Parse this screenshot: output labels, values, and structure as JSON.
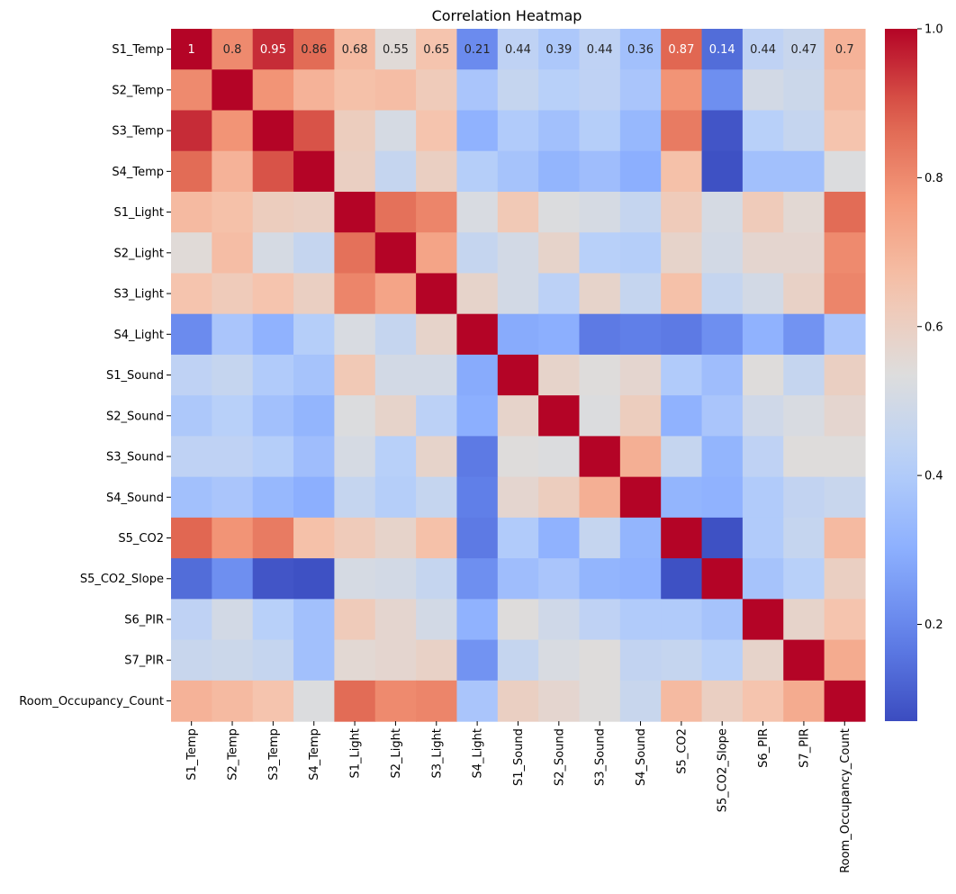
{
  "chart_data": {
    "type": "heatmap",
    "title": "Correlation Heatmap",
    "xlabel": "",
    "ylabel": "",
    "colormap": "coolwarm",
    "vmin": 0.07,
    "vmax": 1.0,
    "colorbar_ticks": [
      "0.2",
      "0.4",
      "0.6",
      "0.8",
      "1.0"
    ],
    "labels": [
      "S1_Temp",
      "S2_Temp",
      "S3_Temp",
      "S4_Temp",
      "S1_Light",
      "S2_Light",
      "S3_Light",
      "S4_Light",
      "S1_Sound",
      "S2_Sound",
      "S3_Sound",
      "S4_Sound",
      "S5_CO2",
      "S5_CO2_Slope",
      "S6_PIR",
      "S7_PIR",
      "Room_Occupancy_Count"
    ],
    "annotated_rows": 1,
    "annotations": [
      [
        "1",
        "0.8",
        "0.95",
        "0.86",
        "0.68",
        "0.55",
        "0.65",
        "0.21",
        "0.44",
        "0.39",
        "0.44",
        "0.36",
        "0.87",
        "0.14",
        "0.44",
        "0.47",
        "0.7"
      ]
    ],
    "values": [
      [
        1.0,
        0.8,
        0.95,
        0.86,
        0.68,
        0.55,
        0.65,
        0.21,
        0.44,
        0.39,
        0.44,
        0.36,
        0.87,
        0.14,
        0.44,
        0.47,
        0.7
      ],
      [
        0.8,
        1.0,
        0.78,
        0.7,
        0.66,
        0.67,
        0.62,
        0.38,
        0.46,
        0.42,
        0.44,
        0.38,
        0.78,
        0.22,
        0.5,
        0.48,
        0.68
      ],
      [
        0.95,
        0.78,
        1.0,
        0.9,
        0.61,
        0.51,
        0.65,
        0.31,
        0.4,
        0.36,
        0.41,
        0.33,
        0.83,
        0.09,
        0.42,
        0.46,
        0.65
      ],
      [
        0.86,
        0.7,
        0.9,
        1.0,
        0.6,
        0.46,
        0.6,
        0.41,
        0.37,
        0.32,
        0.35,
        0.3,
        0.66,
        0.08,
        0.36,
        0.36,
        0.53
      ],
      [
        0.68,
        0.66,
        0.61,
        0.6,
        1.0,
        0.85,
        0.81,
        0.52,
        0.63,
        0.53,
        0.51,
        0.46,
        0.62,
        0.51,
        0.62,
        0.56,
        0.86
      ],
      [
        0.55,
        0.67,
        0.51,
        0.46,
        0.85,
        1.0,
        0.74,
        0.46,
        0.5,
        0.58,
        0.42,
        0.41,
        0.58,
        0.5,
        0.57,
        0.57,
        0.8
      ],
      [
        0.65,
        0.62,
        0.65,
        0.6,
        0.81,
        0.74,
        1.0,
        0.58,
        0.5,
        0.43,
        0.58,
        0.46,
        0.66,
        0.46,
        0.5,
        0.59,
        0.81
      ],
      [
        0.21,
        0.38,
        0.31,
        0.41,
        0.52,
        0.46,
        0.58,
        1.0,
        0.29,
        0.3,
        0.17,
        0.18,
        0.17,
        0.22,
        0.31,
        0.23,
        0.38
      ],
      [
        0.44,
        0.46,
        0.4,
        0.37,
        0.63,
        0.5,
        0.5,
        0.29,
        1.0,
        0.58,
        0.54,
        0.57,
        0.4,
        0.35,
        0.54,
        0.46,
        0.6
      ],
      [
        0.39,
        0.42,
        0.36,
        0.32,
        0.53,
        0.58,
        0.43,
        0.3,
        0.58,
        1.0,
        0.53,
        0.61,
        0.31,
        0.38,
        0.49,
        0.52,
        0.57
      ],
      [
        0.44,
        0.44,
        0.41,
        0.35,
        0.51,
        0.42,
        0.58,
        0.17,
        0.54,
        0.53,
        1.0,
        0.71,
        0.46,
        0.32,
        0.44,
        0.54,
        0.54
      ],
      [
        0.36,
        0.38,
        0.33,
        0.3,
        0.46,
        0.41,
        0.46,
        0.18,
        0.57,
        0.61,
        0.71,
        1.0,
        0.32,
        0.31,
        0.4,
        0.45,
        0.47
      ],
      [
        0.87,
        0.78,
        0.83,
        0.66,
        0.62,
        0.58,
        0.66,
        0.17,
        0.4,
        0.31,
        0.46,
        0.32,
        1.0,
        0.08,
        0.4,
        0.46,
        0.68
      ],
      [
        0.14,
        0.22,
        0.09,
        0.08,
        0.51,
        0.5,
        0.46,
        0.22,
        0.35,
        0.38,
        0.32,
        0.31,
        0.08,
        1.0,
        0.37,
        0.42,
        0.6
      ],
      [
        0.44,
        0.5,
        0.42,
        0.36,
        0.62,
        0.57,
        0.5,
        0.31,
        0.54,
        0.49,
        0.44,
        0.4,
        0.4,
        0.37,
        1.0,
        0.58,
        0.65
      ],
      [
        0.47,
        0.48,
        0.46,
        0.36,
        0.56,
        0.57,
        0.59,
        0.23,
        0.46,
        0.52,
        0.54,
        0.45,
        0.46,
        0.42,
        0.58,
        1.0,
        0.72
      ],
      [
        0.7,
        0.68,
        0.65,
        0.53,
        0.86,
        0.8,
        0.81,
        0.38,
        0.6,
        0.57,
        0.54,
        0.47,
        0.68,
        0.6,
        0.65,
        0.72,
        1.0
      ]
    ]
  }
}
